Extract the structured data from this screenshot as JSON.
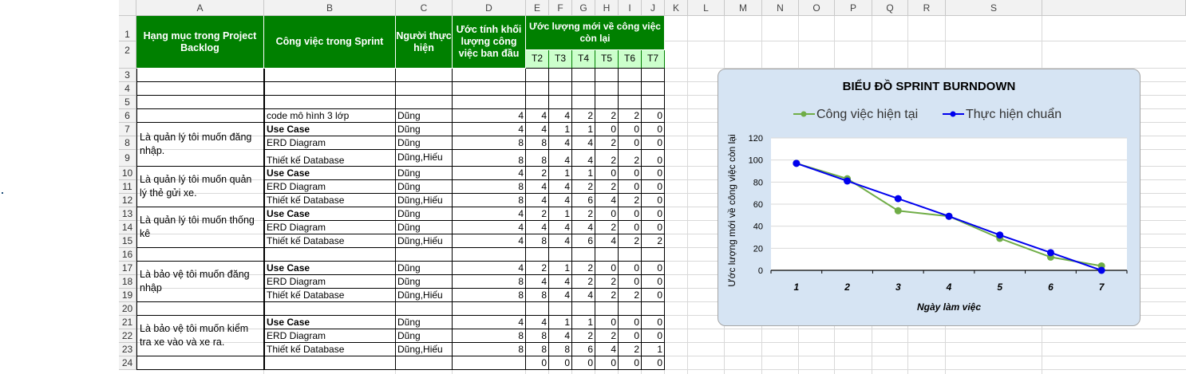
{
  "columns": [
    "A",
    "B",
    "C",
    "D",
    "E",
    "F",
    "G",
    "H",
    "I",
    "J",
    "K",
    "L",
    "M",
    "N",
    "O",
    "P",
    "Q",
    "R",
    "S"
  ],
  "rows": [
    "1",
    "2",
    "3",
    "4",
    "5",
    "6",
    "7",
    "8",
    "9",
    "10",
    "11",
    "12",
    "13",
    "14",
    "15",
    "16",
    "17",
    "18",
    "19",
    "20",
    "21",
    "22",
    "23",
    "24"
  ],
  "header": {
    "backlog": "Hạng mục trong Project Backlog",
    "task": "Công việc trong Sprint",
    "person": "Người thực hiện",
    "estimate": "Ước tính khối lượng công việc ban đầu",
    "remaining": "Ước lượng mới về công việc còn lại",
    "days": [
      "T2",
      "T3",
      "T4",
      "T5",
      "T6",
      "T7"
    ]
  },
  "groups": [
    {
      "label": "Là quản lý tôi muốn đăng nhập."
    },
    {
      "label": "Là quản lý tôi muốn quản lý thẻ gửi xe."
    },
    {
      "label": "Là quản lý tôi muốn thống kê"
    },
    {
      "label": "Là bảo vệ tôi muốn đăng nhập"
    },
    {
      "label": "Là bảo vệ tôi muốn kiểm tra xe vào và xe ra."
    }
  ],
  "tasks": [
    {
      "row": 6,
      "task": "code mô hình 3 lớp",
      "bold": false,
      "person": "Dũng",
      "est": "4",
      "vals": [
        "4",
        "4",
        "2",
        "2",
        "2",
        "0"
      ]
    },
    {
      "row": 7,
      "task": "Use Case",
      "bold": true,
      "person": "Dũng",
      "est": "4",
      "vals": [
        "4",
        "1",
        "1",
        "0",
        "0",
        "0"
      ]
    },
    {
      "row": 8,
      "task": "ERD Diagram",
      "bold": false,
      "person": "Dũng",
      "est": "8",
      "vals": [
        "8",
        "4",
        "4",
        "2",
        "0",
        "0"
      ]
    },
    {
      "row": 9,
      "task": "Thiết kế Database",
      "bold": false,
      "person": "Dũng,Hiếu",
      "est": "8",
      "vals": [
        "8",
        "4",
        "4",
        "2",
        "2",
        "0"
      ]
    },
    {
      "row": 10,
      "task": "Use Case",
      "bold": true,
      "person": "Dũng",
      "est": "4",
      "vals": [
        "2",
        "1",
        "1",
        "0",
        "0",
        "0"
      ]
    },
    {
      "row": 11,
      "task": "ERD Diagram",
      "bold": false,
      "person": "Dũng",
      "est": "8",
      "vals": [
        "4",
        "4",
        "2",
        "2",
        "0",
        "0"
      ]
    },
    {
      "row": 12,
      "task": "Thiết kế Database",
      "bold": false,
      "person": "Dũng,Hiếu",
      "est": "8",
      "vals": [
        "4",
        "4",
        "6",
        "4",
        "2",
        "0"
      ]
    },
    {
      "row": 13,
      "task": "Use Case",
      "bold": true,
      "person": "Dũng",
      "est": "4",
      "vals": [
        "2",
        "1",
        "2",
        "0",
        "0",
        "0"
      ]
    },
    {
      "row": 14,
      "task": "ERD Diagram",
      "bold": false,
      "person": "Dũng",
      "est": "4",
      "vals": [
        "4",
        "4",
        "4",
        "2",
        "0",
        "0"
      ]
    },
    {
      "row": 15,
      "task": "Thiết kế Database",
      "bold": false,
      "person": "Dũng,Hiếu",
      "est": "4",
      "vals": [
        "8",
        "4",
        "6",
        "4",
        "2",
        "2"
      ]
    },
    {
      "row": 17,
      "task": "Use Case",
      "bold": true,
      "person": "Dũng",
      "est": "4",
      "vals": [
        "2",
        "1",
        "2",
        "0",
        "0",
        "0"
      ]
    },
    {
      "row": 18,
      "task": "ERD Diagram",
      "bold": false,
      "person": "Dũng",
      "est": "8",
      "vals": [
        "4",
        "4",
        "2",
        "2",
        "0",
        "0"
      ]
    },
    {
      "row": 19,
      "task": "Thiết kế Database",
      "bold": false,
      "person": "Dũng,Hiếu",
      "est": "8",
      "vals": [
        "8",
        "4",
        "4",
        "2",
        "2",
        "0"
      ]
    },
    {
      "row": 21,
      "task": "Use Case",
      "bold": true,
      "person": "Dũng",
      "est": "4",
      "vals": [
        "4",
        "1",
        "1",
        "0",
        "0",
        "0"
      ]
    },
    {
      "row": 22,
      "task": "ERD Diagram",
      "bold": false,
      "person": "Dũng",
      "est": "8",
      "vals": [
        "8",
        "4",
        "2",
        "2",
        "0",
        "0"
      ]
    },
    {
      "row": 23,
      "task": "Thiết kế Database",
      "bold": false,
      "person": "Dũng,Hiếu",
      "est": "8",
      "vals": [
        "8",
        "8",
        "6",
        "4",
        "2",
        "1"
      ]
    },
    {
      "row": 24,
      "task": "",
      "bold": false,
      "person": "",
      "est": "",
      "vals": [
        "0",
        "0",
        "0",
        "0",
        "0",
        "0"
      ]
    }
  ],
  "colors": {
    "header_green": "#008000",
    "day_header": "#ccffcc",
    "chart_bg": "#d6e4f3",
    "series_actual": "#70ad47",
    "series_ideal": "#0000ee"
  },
  "chart_data": {
    "type": "line",
    "title": "BIỂU ĐỒ SPRINT BURNDOWN",
    "xlabel": "Ngày làm việc",
    "ylabel": "Ước lượng mới về công việc còn lại",
    "x": [
      1,
      2,
      3,
      4,
      5,
      6,
      7
    ],
    "ylim": [
      0,
      120
    ],
    "yticks": [
      0,
      20,
      40,
      60,
      80,
      100,
      120
    ],
    "grid": true,
    "legend": "top",
    "series": [
      {
        "name": "Công việc hiện tại",
        "color": "#70ad47",
        "values": [
          97,
          83,
          54,
          49,
          29,
          12,
          4
        ]
      },
      {
        "name": "Thực hiện chuẩn",
        "color": "#0000ee",
        "values": [
          97,
          81,
          65,
          49,
          32,
          16,
          0
        ]
      }
    ]
  }
}
